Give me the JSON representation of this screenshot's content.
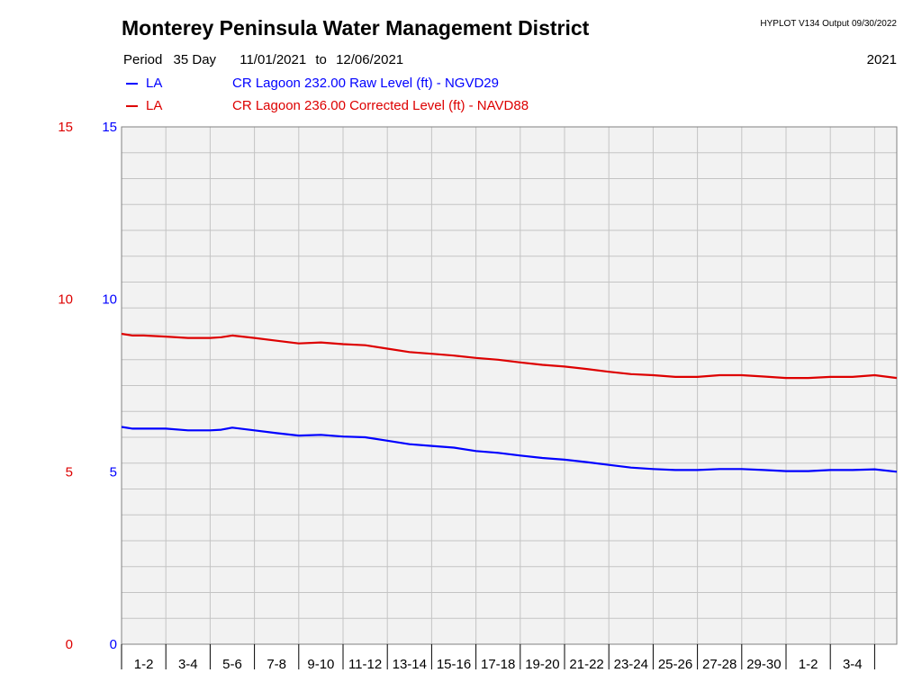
{
  "header": {
    "title": "Monterey Peninsula Water Management District",
    "meta": "HYPLOT V134  Output 09/30/2022",
    "period_label": "Period",
    "period_value": "35 Day",
    "start_date": "11/01/2021",
    "to_word": "to",
    "end_date": "12/06/2021",
    "year": "2021"
  },
  "legend": [
    {
      "code": "LA",
      "description": "CR Lagoon  232.00 Raw Level (ft) - NGVD29",
      "color": "#0000ff"
    },
    {
      "code": "LA",
      "description": "CR Lagoon  236.00 Corrected Level (ft) - NAVD88",
      "color": "#dd0000"
    }
  ],
  "chart_data": {
    "type": "line",
    "x_unit": "day",
    "x_range": [
      0,
      35
    ],
    "ylim": [
      0,
      15
    ],
    "left_axis_ticks": [
      "0",
      "5",
      "10",
      "15"
    ],
    "left_axis_color": "#dd0000",
    "right_axis_ticks": [
      "0",
      "5",
      "10",
      "15"
    ],
    "right_axis_color": "#0000ff",
    "x_tick_labels": [
      "1-2",
      "3-4",
      "5-6",
      "7-8",
      "9-10",
      "11-12",
      "13-14",
      "15-16",
      "17-18",
      "19-20",
      "21-22",
      "23-24",
      "25-26",
      "27-28",
      "29-30",
      "1-2",
      "3-4"
    ],
    "grid": true,
    "plot_background": "#f2f2f2",
    "series": [
      {
        "name": "CR Lagoon  232.00 Raw Level (ft) - NGVD29",
        "color": "#0000ff",
        "x": [
          0,
          0.5,
          1,
          2,
          3,
          4,
          4.5,
          5,
          6,
          7,
          8,
          9,
          10,
          11,
          12,
          13,
          14,
          15,
          16,
          17,
          18,
          19,
          20,
          21,
          22,
          23,
          24,
          25,
          26,
          27,
          28,
          29,
          30,
          31,
          32,
          33,
          34,
          35
        ],
        "y": [
          6.3,
          6.25,
          6.25,
          6.25,
          6.2,
          6.2,
          6.22,
          6.28,
          6.2,
          6.12,
          6.05,
          6.07,
          6.02,
          6.0,
          5.9,
          5.8,
          5.75,
          5.7,
          5.6,
          5.55,
          5.47,
          5.4,
          5.35,
          5.28,
          5.2,
          5.12,
          5.08,
          5.05,
          5.05,
          5.08,
          5.08,
          5.05,
          5.02,
          5.02,
          5.05,
          5.05,
          5.07,
          5.0
        ]
      },
      {
        "name": "CR Lagoon  236.00 Corrected Level (ft) - NAVD88",
        "color": "#dd0000",
        "x": [
          0,
          0.5,
          1,
          2,
          3,
          4,
          4.5,
          5,
          6,
          7,
          8,
          9,
          10,
          11,
          12,
          13,
          14,
          15,
          16,
          17,
          18,
          19,
          20,
          21,
          22,
          23,
          24,
          25,
          26,
          27,
          28,
          29,
          30,
          31,
          32,
          33,
          34,
          35
        ],
        "y": [
          9.0,
          8.95,
          8.95,
          8.92,
          8.88,
          8.88,
          8.9,
          8.95,
          8.88,
          8.8,
          8.72,
          8.75,
          8.7,
          8.67,
          8.57,
          8.47,
          8.42,
          8.37,
          8.3,
          8.25,
          8.17,
          8.1,
          8.05,
          7.98,
          7.9,
          7.83,
          7.8,
          7.75,
          7.75,
          7.8,
          7.8,
          7.76,
          7.72,
          7.72,
          7.75,
          7.75,
          7.8,
          7.72
        ]
      }
    ]
  }
}
